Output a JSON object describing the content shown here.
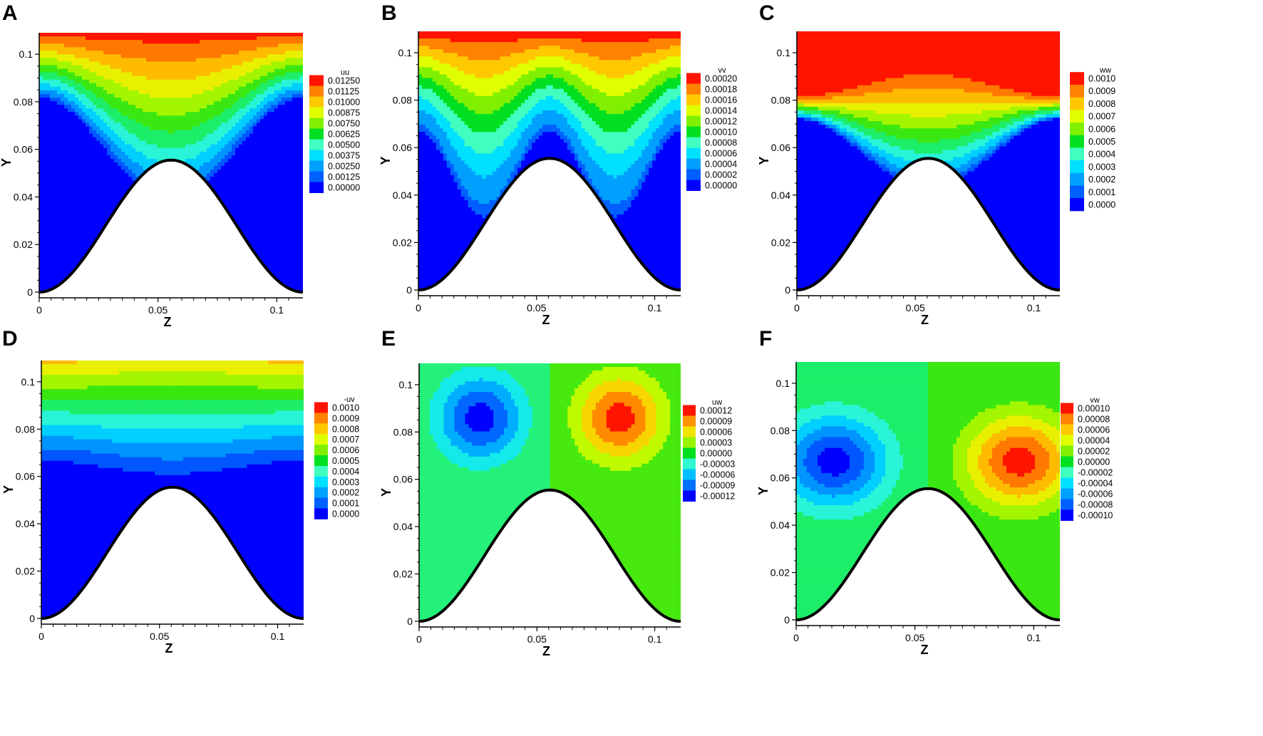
{
  "chart_data": [
    {
      "type": "heatmap",
      "panel": "A",
      "xlabel": "Z",
      "ylabel": "Y",
      "xlim": [
        0,
        0.111
      ],
      "ylim": [
        0,
        0.109
      ],
      "x_ticks": [
        "0",
        "0.05",
        "0.1"
      ],
      "y_ticks": [
        "0",
        "0.02",
        "0.04",
        "0.06",
        "0.08",
        "0.1"
      ],
      "legend_title": "uu",
      "legend_levels": [
        "0.01250",
        "0.01125",
        "0.01000",
        "0.00875",
        "0.00750",
        "0.00625",
        "0.00500",
        "0.00375",
        "0.00250",
        "0.00125",
        "0.00000"
      ]
    },
    {
      "type": "heatmap",
      "panel": "B",
      "xlabel": "Z",
      "ylabel": "Y",
      "xlim": [
        0,
        0.111
      ],
      "ylim": [
        0,
        0.109
      ],
      "x_ticks": [
        "0",
        "0.05",
        "0.1"
      ],
      "y_ticks": [
        "0",
        "0.02",
        "0.04",
        "0.06",
        "0.08",
        "0.1"
      ],
      "legend_title": "vv",
      "legend_levels": [
        "0.00020",
        "0.00018",
        "0.00016",
        "0.00014",
        "0.00012",
        "0.00010",
        "0.00008",
        "0.00006",
        "0.00004",
        "0.00002",
        "0.00000"
      ]
    },
    {
      "type": "heatmap",
      "panel": "C",
      "xlabel": "Z",
      "ylabel": "Y",
      "xlim": [
        0,
        0.111
      ],
      "ylim": [
        0,
        0.109
      ],
      "x_ticks": [
        "0",
        "0.05",
        "0.1"
      ],
      "y_ticks": [
        "0",
        "0.02",
        "0.04",
        "0.06",
        "0.08",
        "0.1"
      ],
      "legend_title": "ww",
      "legend_levels": [
        "0.0010",
        "0.0009",
        "0.0008",
        "0.0007",
        "0.0006",
        "0.0005",
        "0.0004",
        "0.0003",
        "0.0002",
        "0.0001",
        "0.0000"
      ]
    },
    {
      "type": "heatmap",
      "panel": "D",
      "xlabel": "Z",
      "ylabel": "Y",
      "xlim": [
        0,
        0.111
      ],
      "ylim": [
        0,
        0.109
      ],
      "x_ticks": [
        "0",
        "0.05",
        "0.1"
      ],
      "y_ticks": [
        "0",
        "0.02",
        "0.04",
        "0.06",
        "0.08",
        "0.1"
      ],
      "legend_title": "-uv",
      "legend_levels": [
        "0.0010",
        "0.0009",
        "0.0008",
        "0.0007",
        "0.0006",
        "0.0005",
        "0.0004",
        "0.0003",
        "0.0002",
        "0.0001",
        "0.0000"
      ]
    },
    {
      "type": "heatmap",
      "panel": "E",
      "xlabel": "Z",
      "ylabel": "Y",
      "xlim": [
        0,
        0.111
      ],
      "ylim": [
        0,
        0.109
      ],
      "x_ticks": [
        "0",
        "0.05",
        "0.1"
      ],
      "y_ticks": [
        "0",
        "0.02",
        "0.04",
        "0.06",
        "0.08",
        "0.1"
      ],
      "legend_title": "uw",
      "legend_levels": [
        "0.00012",
        "0.00009",
        "0.00006",
        "0.00003",
        "0.00000",
        "-0.00003",
        "-0.00006",
        "-0.00009",
        "-0.00012"
      ]
    },
    {
      "type": "heatmap",
      "panel": "F",
      "xlabel": "Z",
      "ylabel": "Y",
      "xlim": [
        0,
        0.111
      ],
      "ylim": [
        0,
        0.109
      ],
      "x_ticks": [
        "0",
        "0.05",
        "0.1"
      ],
      "y_ticks": [
        "0",
        "0.02",
        "0.04",
        "0.06",
        "0.08",
        "0.1"
      ],
      "legend_title": "vw",
      "legend_levels": [
        "0.00010",
        "0.00008",
        "0.00006",
        "0.00004",
        "0.00002",
        "0.00000",
        "-0.00002",
        "-0.00004",
        "-0.00006",
        "-0.00008",
        "-0.00010"
      ]
    }
  ]
}
